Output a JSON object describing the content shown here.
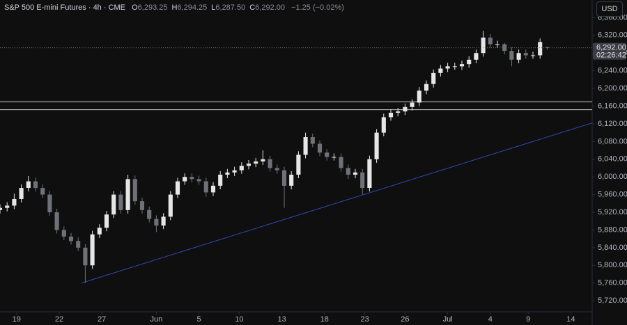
{
  "chart_data": {
    "type": "candlestick",
    "title": "S&P 500 E-mini Futures · 4h · CME",
    "header_values": [
      {
        "key": "O",
        "label": "6,293.25"
      },
      {
        "key": "H",
        "label": "6,294.25"
      },
      {
        "key": "L",
        "label": "6,287.50"
      },
      {
        "key": "C",
        "label": "6,292.00"
      }
    ],
    "change": "−1.25 (−0.02%)",
    "currency": "USD",
    "last_price_label": "6,292.00",
    "countdown": "02:26:42",
    "up_color": "#e6e6e6",
    "down_color": "#6f7178",
    "x": [
      0,
      3,
      6,
      9,
      12,
      15,
      18,
      21,
      24,
      27,
      30,
      33,
      36,
      39,
      42,
      45,
      48,
      51,
      54,
      57,
      60,
      63,
      66,
      69,
      72,
      75,
      78,
      81,
      84,
      87,
      90,
      93,
      96,
      99,
      102,
      105,
      108,
      111,
      114,
      117,
      120,
      123,
      126,
      129,
      132,
      135,
      138,
      141,
      144,
      147,
      150,
      153,
      156,
      159,
      162,
      165,
      168,
      171,
      174,
      177,
      180,
      183,
      186,
      189,
      192,
      195,
      198,
      201,
      204,
      207,
      210,
      213,
      216,
      219,
      222,
      225,
      228,
      231
    ],
    "open": [
      5925,
      5930,
      5935,
      5950,
      5975,
      5990,
      5975,
      5960,
      5920,
      5880,
      5865,
      5855,
      5840,
      5800,
      5870,
      5885,
      5915,
      5960,
      5925,
      5995,
      5945,
      5925,
      5905,
      5890,
      5910,
      5960,
      5990,
      6000,
      5995,
      5990,
      5965,
      5980,
      6005,
      6010,
      6015,
      6025,
      6030,
      6035,
      6040,
      6020,
      6015,
      5980,
      6005,
      6050,
      6090,
      6075,
      6055,
      6045,
      6045,
      6020,
      6005,
      6010,
      5975,
      6040,
      6100,
      6135,
      6145,
      6148,
      6158,
      6168,
      6195,
      6210,
      6235,
      6245,
      6250,
      6250,
      6255,
      6265,
      6280,
      6315,
      6300,
      6300,
      6285,
      6265,
      6280,
      6275,
      6275,
      6293.25
    ],
    "high": [
      5938,
      5943,
      5962,
      5983,
      6002,
      5998,
      5983,
      5968,
      5928,
      5888,
      5873,
      5863,
      5848,
      5878,
      5893,
      5923,
      5968,
      5968,
      6005,
      6003,
      5953,
      5933,
      5913,
      5918,
      5968,
      5998,
      6008,
      6008,
      6003,
      5998,
      5988,
      6013,
      6018,
      6023,
      6033,
      6038,
      6043,
      6060,
      6048,
      6028,
      6023,
      6013,
      6058,
      6100,
      6098,
      6083,
      6063,
      6053,
      6053,
      6028,
      6018,
      6018,
      6048,
      6108,
      6143,
      6153,
      6156,
      6166,
      6176,
      6203,
      6218,
      6243,
      6253,
      6258,
      6258,
      6263,
      6273,
      6288,
      6330,
      6323,
      6308,
      6303,
      6293,
      6288,
      6288,
      6283,
      6313,
      6294.25
    ],
    "low": [
      5917,
      5922,
      5927,
      5942,
      5967,
      5967,
      5952,
      5912,
      5872,
      5857,
      5847,
      5832,
      5760,
      5792,
      5862,
      5877,
      5907,
      5917,
      5917,
      5937,
      5917,
      5897,
      5875,
      5882,
      5902,
      5952,
      5982,
      5987,
      5982,
      5955,
      5957,
      5972,
      5997,
      6002,
      6007,
      6017,
      6022,
      6027,
      6012,
      6007,
      5930,
      5972,
      5997,
      6042,
      6067,
      6047,
      6037,
      6037,
      6012,
      5995,
      5997,
      5960,
      5967,
      6032,
      6092,
      6127,
      6137,
      6140,
      6150,
      6160,
      6187,
      6202,
      6227,
      6237,
      6242,
      6242,
      6247,
      6257,
      6272,
      6292,
      6292,
      6277,
      6250,
      6257,
      6267,
      6267,
      6267,
      6287.5
    ],
    "close": [
      5930,
      5935,
      5950,
      5975,
      5990,
      5975,
      5960,
      5920,
      5880,
      5865,
      5855,
      5840,
      5800,
      5870,
      5885,
      5915,
      5960,
      5925,
      5995,
      5945,
      5925,
      5905,
      5890,
      5910,
      5960,
      5990,
      6000,
      5995,
      5990,
      5965,
      5980,
      6005,
      6010,
      6015,
      6025,
      6030,
      6035,
      6040,
      6020,
      6015,
      5980,
      6005,
      6050,
      6090,
      6075,
      6055,
      6045,
      6045,
      6020,
      6005,
      6010,
      5975,
      6040,
      6100,
      6135,
      6145,
      6148,
      6158,
      6168,
      6195,
      6210,
      6235,
      6245,
      6250,
      6250,
      6255,
      6265,
      6280,
      6315,
      6300,
      6300,
      6285,
      6265,
      6280,
      6275,
      6275,
      6305,
      6292
    ],
    "levels": [
      6170,
      6152
    ],
    "level_color": "#c8c8c8",
    "trendline": {
      "x": [
        34.4,
        250
      ],
      "y": [
        5760,
        6122
      ],
      "color": "#3048b0"
    },
    "xlim": [
      0,
      250
    ],
    "ylim": [
      5695,
      6400
    ],
    "xticks": [
      {
        "value": 7,
        "label": "19"
      },
      {
        "value": 25,
        "label": "22"
      },
      {
        "value": 43,
        "label": "27"
      },
      {
        "value": 66,
        "label": "Jun"
      },
      {
        "value": 84,
        "label": "5"
      },
      {
        "value": 101,
        "label": "10"
      },
      {
        "value": 119,
        "label": "13"
      },
      {
        "value": 137,
        "label": "18"
      },
      {
        "value": 154,
        "label": "23"
      },
      {
        "value": 171,
        "label": "26"
      },
      {
        "value": 189,
        "label": "Jul"
      },
      {
        "value": 207,
        "label": "4"
      },
      {
        "value": 223,
        "label": "9"
      },
      {
        "value": 241,
        "label": "14"
      }
    ],
    "yticks": [
      {
        "value": 5720,
        "label": "5,720.00"
      },
      {
        "value": 5760,
        "label": "5,760.00"
      },
      {
        "value": 5800,
        "label": "5,800.00"
      },
      {
        "value": 5840,
        "label": "5,840.00"
      },
      {
        "value": 5880,
        "label": "5,880.00"
      },
      {
        "value": 5920,
        "label": "5,920.00"
      },
      {
        "value": 5960,
        "label": "5,960.00"
      },
      {
        "value": 6000,
        "label": "6,000.00"
      },
      {
        "value": 6040,
        "label": "6,040.00"
      },
      {
        "value": 6080,
        "label": "6,080.00"
      },
      {
        "value": 6120,
        "label": "6,120.00"
      },
      {
        "value": 6160,
        "label": "6,160.00"
      },
      {
        "value": 6200,
        "label": "6,200.00"
      },
      {
        "value": 6240,
        "label": "6,240.00"
      },
      {
        "value": 6280,
        "label": "6,280.00"
      },
      {
        "value": 6320,
        "label": "6,320.00"
      },
      {
        "value": 6360,
        "label": "6,360.00"
      }
    ],
    "grid": false
  }
}
